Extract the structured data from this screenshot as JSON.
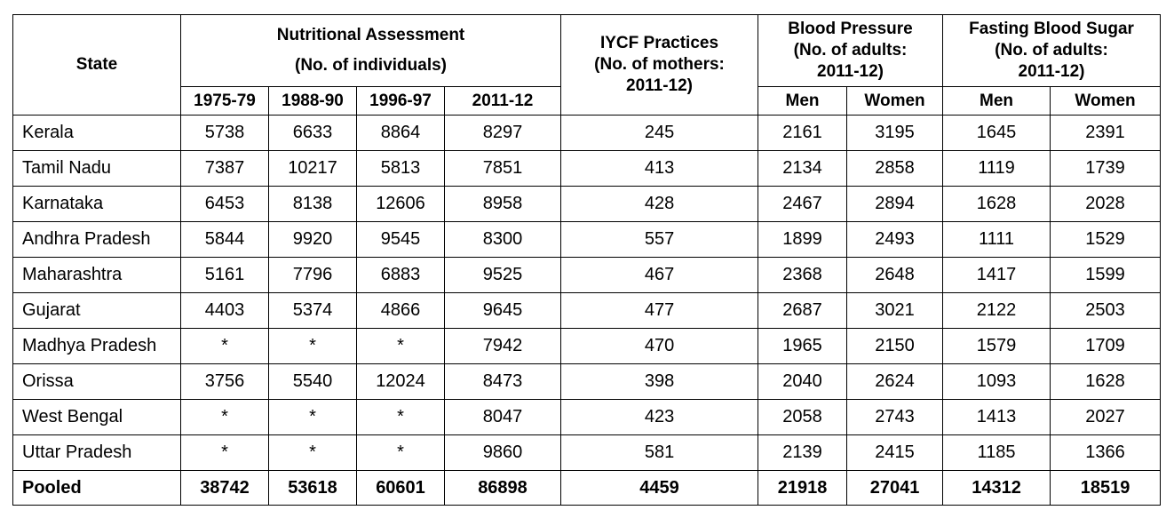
{
  "headers": {
    "state": "State",
    "nutrition_line1": "Nutritional Assessment",
    "nutrition_line2": "(No. of individuals)",
    "iycf_line1": "IYCF Practices",
    "iycf_line2": "(No. of mothers:",
    "iycf_line3": "2011-12)",
    "bp_line1": "Blood Pressure",
    "bp_line2": "(No. of adults:",
    "bp_line3": "2011-12)",
    "fbs_line1": "Fasting  Blood Sugar",
    "fbs_line2": "(No. of adults:",
    "fbs_line3": "2011-12)",
    "years": [
      "1975-79",
      "1988-90",
      "1996-97",
      "2011-12"
    ],
    "men": "Men",
    "women": "Women"
  },
  "rows": [
    {
      "state": "Kerala",
      "v": [
        "5738",
        "6633",
        "8864",
        "8297",
        "245",
        "2161",
        "3195",
        "1645",
        "2391"
      ]
    },
    {
      "state": "Tamil Nadu",
      "v": [
        "7387",
        "10217",
        "5813",
        "7851",
        "413",
        "2134",
        "2858",
        "1119",
        "1739"
      ]
    },
    {
      "state": "Karnataka",
      "v": [
        "6453",
        "8138",
        "12606",
        "8958",
        "428",
        "2467",
        "2894",
        "1628",
        "2028"
      ]
    },
    {
      "state": "Andhra Pradesh",
      "v": [
        "5844",
        "9920",
        "9545",
        "8300",
        "557",
        "1899",
        "2493",
        "1111",
        "1529"
      ]
    },
    {
      "state": "Maharashtra",
      "v": [
        "5161",
        "7796",
        "6883",
        "9525",
        "467",
        "2368",
        "2648",
        "1417",
        "1599"
      ]
    },
    {
      "state": "Gujarat",
      "v": [
        "4403",
        "5374",
        "4866",
        "9645",
        "477",
        "2687",
        "3021",
        "2122",
        "2503"
      ]
    },
    {
      "state": "Madhya Pradesh",
      "v": [
        "*",
        "*",
        "*",
        "7942",
        "470",
        "1965",
        "2150",
        "1579",
        "1709"
      ]
    },
    {
      "state": "Orissa",
      "v": [
        "3756",
        "5540",
        "12024",
        "8473",
        "398",
        "2040",
        "2624",
        "1093",
        "1628"
      ]
    },
    {
      "state": "West Bengal",
      "v": [
        "*",
        "*",
        "*",
        "8047",
        "423",
        "2058",
        "2743",
        "1413",
        "2027"
      ]
    },
    {
      "state": "Uttar Pradesh",
      "v": [
        "*",
        "*",
        "*",
        "9860",
        "581",
        "2139",
        "2415",
        "1185",
        "1366"
      ]
    }
  ],
  "pooled": {
    "state": "Pooled",
    "v": [
      "38742",
      "53618",
      "60601",
      "86898",
      "4459",
      "21918",
      "27041",
      "14312",
      "18519"
    ]
  }
}
